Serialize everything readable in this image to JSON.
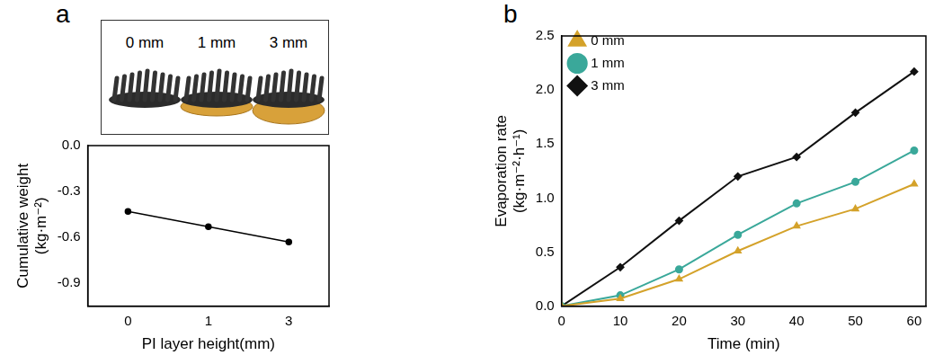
{
  "chart_data": [
    {
      "panel": "a",
      "type": "line",
      "annotations": [
        "0 mm",
        "1 mm",
        "3 mm"
      ],
      "x_label": "PI layer height(mm)",
      "y_label": [
        "Cumulative weight",
        "(kg·m⁻²)"
      ],
      "categories": [
        "0",
        "1",
        "3"
      ],
      "values": [
        -0.43,
        -0.53,
        -0.63
      ],
      "color": "#000000",
      "marker": "circle",
      "ylim": [
        -1.05,
        0
      ],
      "yticks": [
        {
          "value": 0,
          "label": "0.0"
        },
        -0.3,
        -0.6,
        -0.9
      ],
      "grid": false
    },
    {
      "panel": "b",
      "type": "line",
      "x_label": "Time (min)",
      "y_label": [
        "Evaporation rate",
        "(kg·m⁻²·h⁻¹)"
      ],
      "x": [
        0,
        10,
        20,
        30,
        40,
        50,
        60
      ],
      "series": [
        {
          "name": "0 mm",
          "color": "#d4a22a",
          "marker": "triangle",
          "values": [
            0,
            0.07,
            0.25,
            0.51,
            0.74,
            0.9,
            1.13
          ]
        },
        {
          "name": "1 mm",
          "color": "#3aa89a",
          "marker": "circle",
          "values": [
            0,
            0.1,
            0.34,
            0.66,
            0.95,
            1.15,
            1.44
          ]
        },
        {
          "name": "3 mm",
          "color": "#111111",
          "marker": "diamond",
          "values": [
            0,
            0.36,
            0.79,
            1.2,
            1.38,
            1.79,
            2.17
          ]
        }
      ],
      "xlim": [
        0,
        62
      ],
      "xticks": [
        0,
        10,
        20,
        30,
        40,
        50,
        60
      ],
      "ylim": [
        0,
        2.5
      ],
      "yticks": [
        {
          "value": 0,
          "label": "0.0"
        },
        0.5,
        {
          "value": 1,
          "label": "1.0"
        },
        1.5,
        {
          "value": 2,
          "label": "2.0"
        },
        2.5
      ],
      "legend": "upper left",
      "grid": false
    }
  ]
}
